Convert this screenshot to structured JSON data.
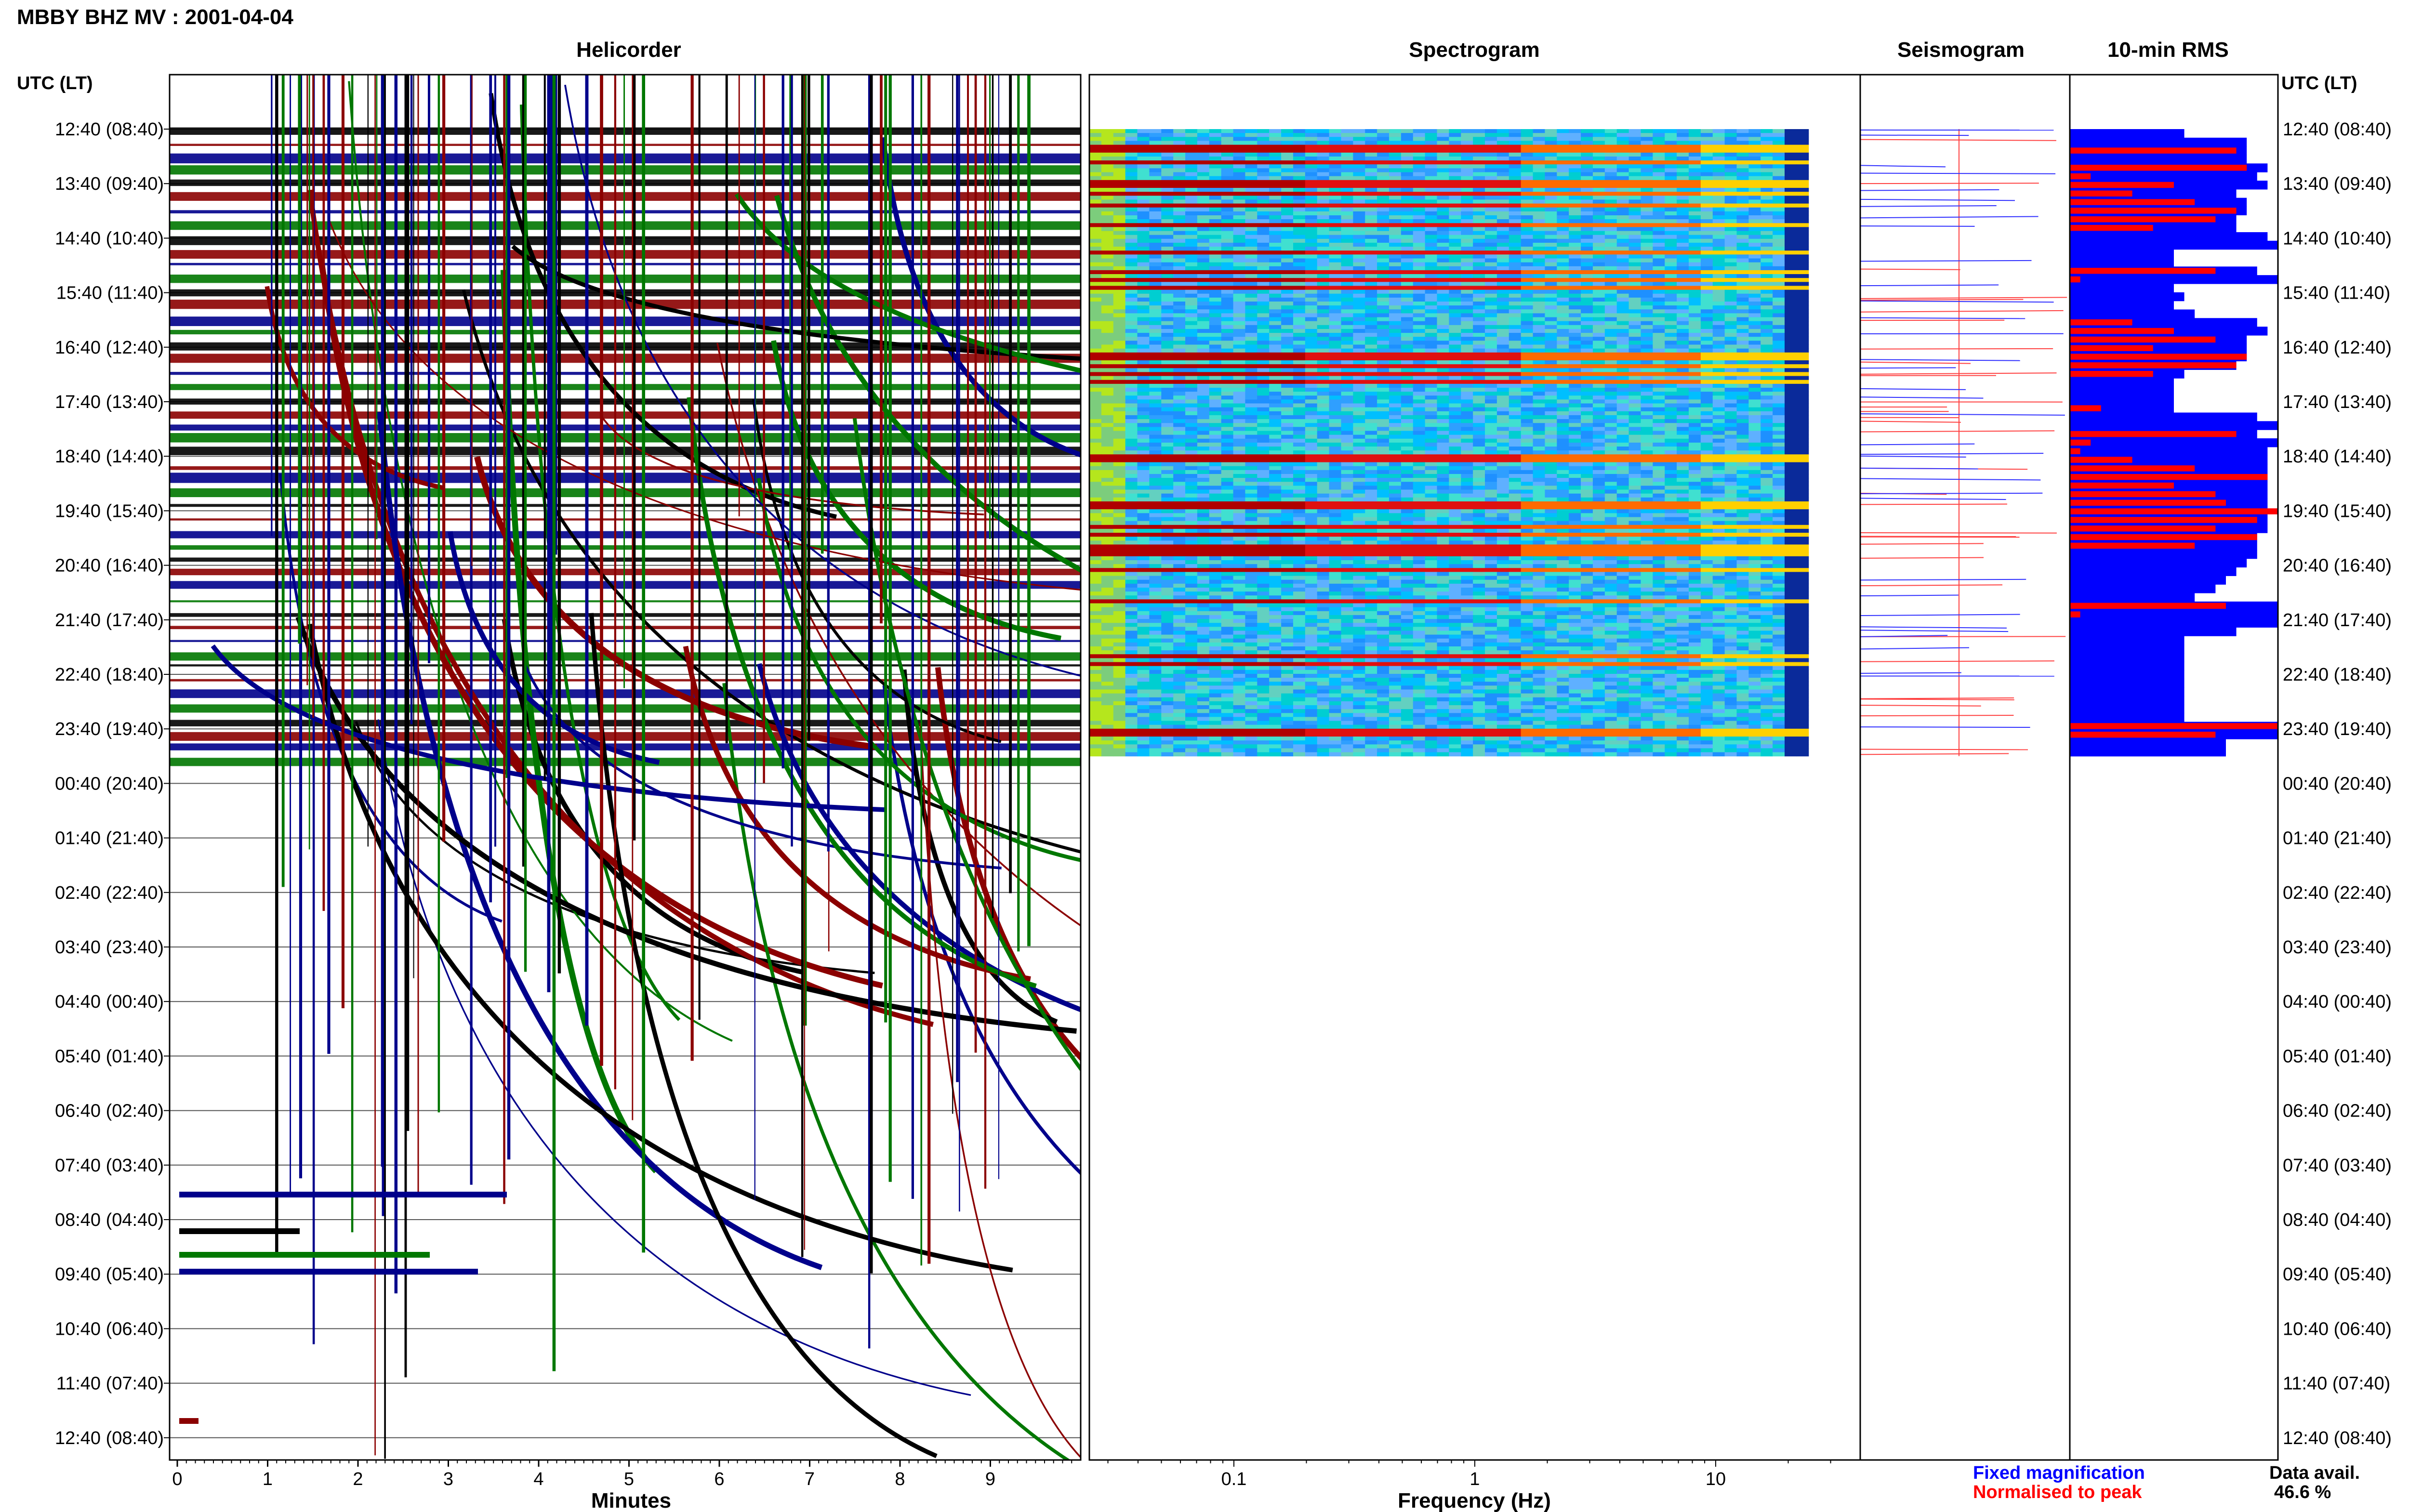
{
  "header": {
    "title": "MBBY BHZ MV : 2001-04-04"
  },
  "panels": {
    "helicorder": "Helicorder",
    "spectrogram": "Spectrogram",
    "seismogram": "Seismogram",
    "rms": "10-min RMS"
  },
  "axes": {
    "utc_label_left": "UTC (LT)",
    "utc_label_right": "UTC (LT)",
    "minutes_label": "Minutes",
    "frequency_label": "Frequency (Hz)"
  },
  "legend": {
    "fixed": "Fixed magnification",
    "normalised": "Normalised to peak",
    "fixed_color": "#0000ff",
    "normalised_color": "#ff0000"
  },
  "data_availability": {
    "label": "Data avail.",
    "value": "46.6 %"
  },
  "chart_data": {
    "type": "helicorder-spectrogram",
    "time_labels": [
      "12:40 (08:40)",
      "13:40 (09:40)",
      "14:40 (10:40)",
      "15:40 (11:40)",
      "16:40 (12:40)",
      "17:40 (13:40)",
      "18:40 (14:40)",
      "19:40 (15:40)",
      "20:40 (16:40)",
      "21:40 (17:40)",
      "22:40 (18:40)",
      "23:40 (19:40)",
      "00:40 (20:40)",
      "01:40 (21:40)",
      "02:40 (22:40)",
      "03:40 (23:40)",
      "04:40 (00:40)",
      "05:40 (01:40)",
      "06:40 (02:40)",
      "07:40 (03:40)",
      "08:40 (04:40)",
      "09:40 (05:40)",
      "10:40 (06:40)",
      "11:40 (07:40)",
      "12:40 (08:40)"
    ],
    "minute_ticks": [
      "0",
      "1",
      "2",
      "3",
      "4",
      "5",
      "6",
      "7",
      "8",
      "9"
    ],
    "minute_range": [
      0,
      10
    ],
    "frequency_ticks": [
      "0.1",
      "1",
      "10"
    ],
    "frequency_tick_values": [
      0.1,
      1,
      10
    ],
    "frequency_range_log10": [
      -1.6,
      1.6
    ],
    "helicorder_trace_colors": [
      "#000000",
      "#8b0000",
      "#00008b",
      "#007700"
    ],
    "spectrogram_extent_hours": 11.5,
    "data_available_percent": 46.6,
    "rms_fixed_color": "#0000ff",
    "rms_normalised_color": "#ff0000",
    "rms_fixed_fraction": [
      0.55,
      0.85,
      0.85,
      0.85,
      0.95,
      0.9,
      0.95,
      0.8,
      0.85,
      0.85,
      0.8,
      0.8,
      0.95,
      1.0,
      0.5,
      0.5,
      0.9,
      1.0,
      0.5,
      0.55,
      0.5,
      0.6,
      0.9,
      0.95,
      0.85,
      0.85,
      0.85,
      0.8,
      0.55,
      0.5,
      0.5,
      0.5,
      0.5,
      0.9,
      1.0,
      0.9,
      1.0,
      0.95,
      0.95,
      0.95,
      0.95,
      0.95,
      0.95,
      0.95,
      0.95,
      0.95,
      0.95,
      0.9,
      0.9,
      0.9,
      0.85,
      0.8,
      0.75,
      0.7,
      0.6,
      1.0,
      1.0,
      1.0,
      0.8,
      0.55,
      0.55,
      0.55,
      0.55,
      0.55,
      0.55,
      0.55,
      0.55,
      0.55,
      0.55,
      1.0,
      1.0,
      0.75,
      0.75
    ],
    "rms_normalised_fraction": [
      0,
      0,
      0.8,
      0,
      0.85,
      0.1,
      0.5,
      0.3,
      0.6,
      0.8,
      0.7,
      0.4,
      0,
      0,
      0,
      0,
      0.7,
      0.05,
      0,
      0,
      0,
      0,
      0.3,
      0.5,
      0.7,
      0.4,
      0.85,
      0.8,
      0.4,
      0,
      0,
      0,
      0.15,
      0,
      0,
      0.8,
      0.1,
      0.05,
      0.3,
      0.6,
      0.95,
      0.5,
      0.7,
      0.75,
      1.0,
      0.9,
      0.7,
      0.9,
      0.6,
      0,
      0,
      0,
      0,
      0,
      0,
      0.75,
      0.05,
      0,
      0,
      0,
      0,
      0,
      0,
      0,
      0,
      0,
      0,
      0,
      0,
      1.0,
      0.7,
      0,
      0
    ]
  }
}
